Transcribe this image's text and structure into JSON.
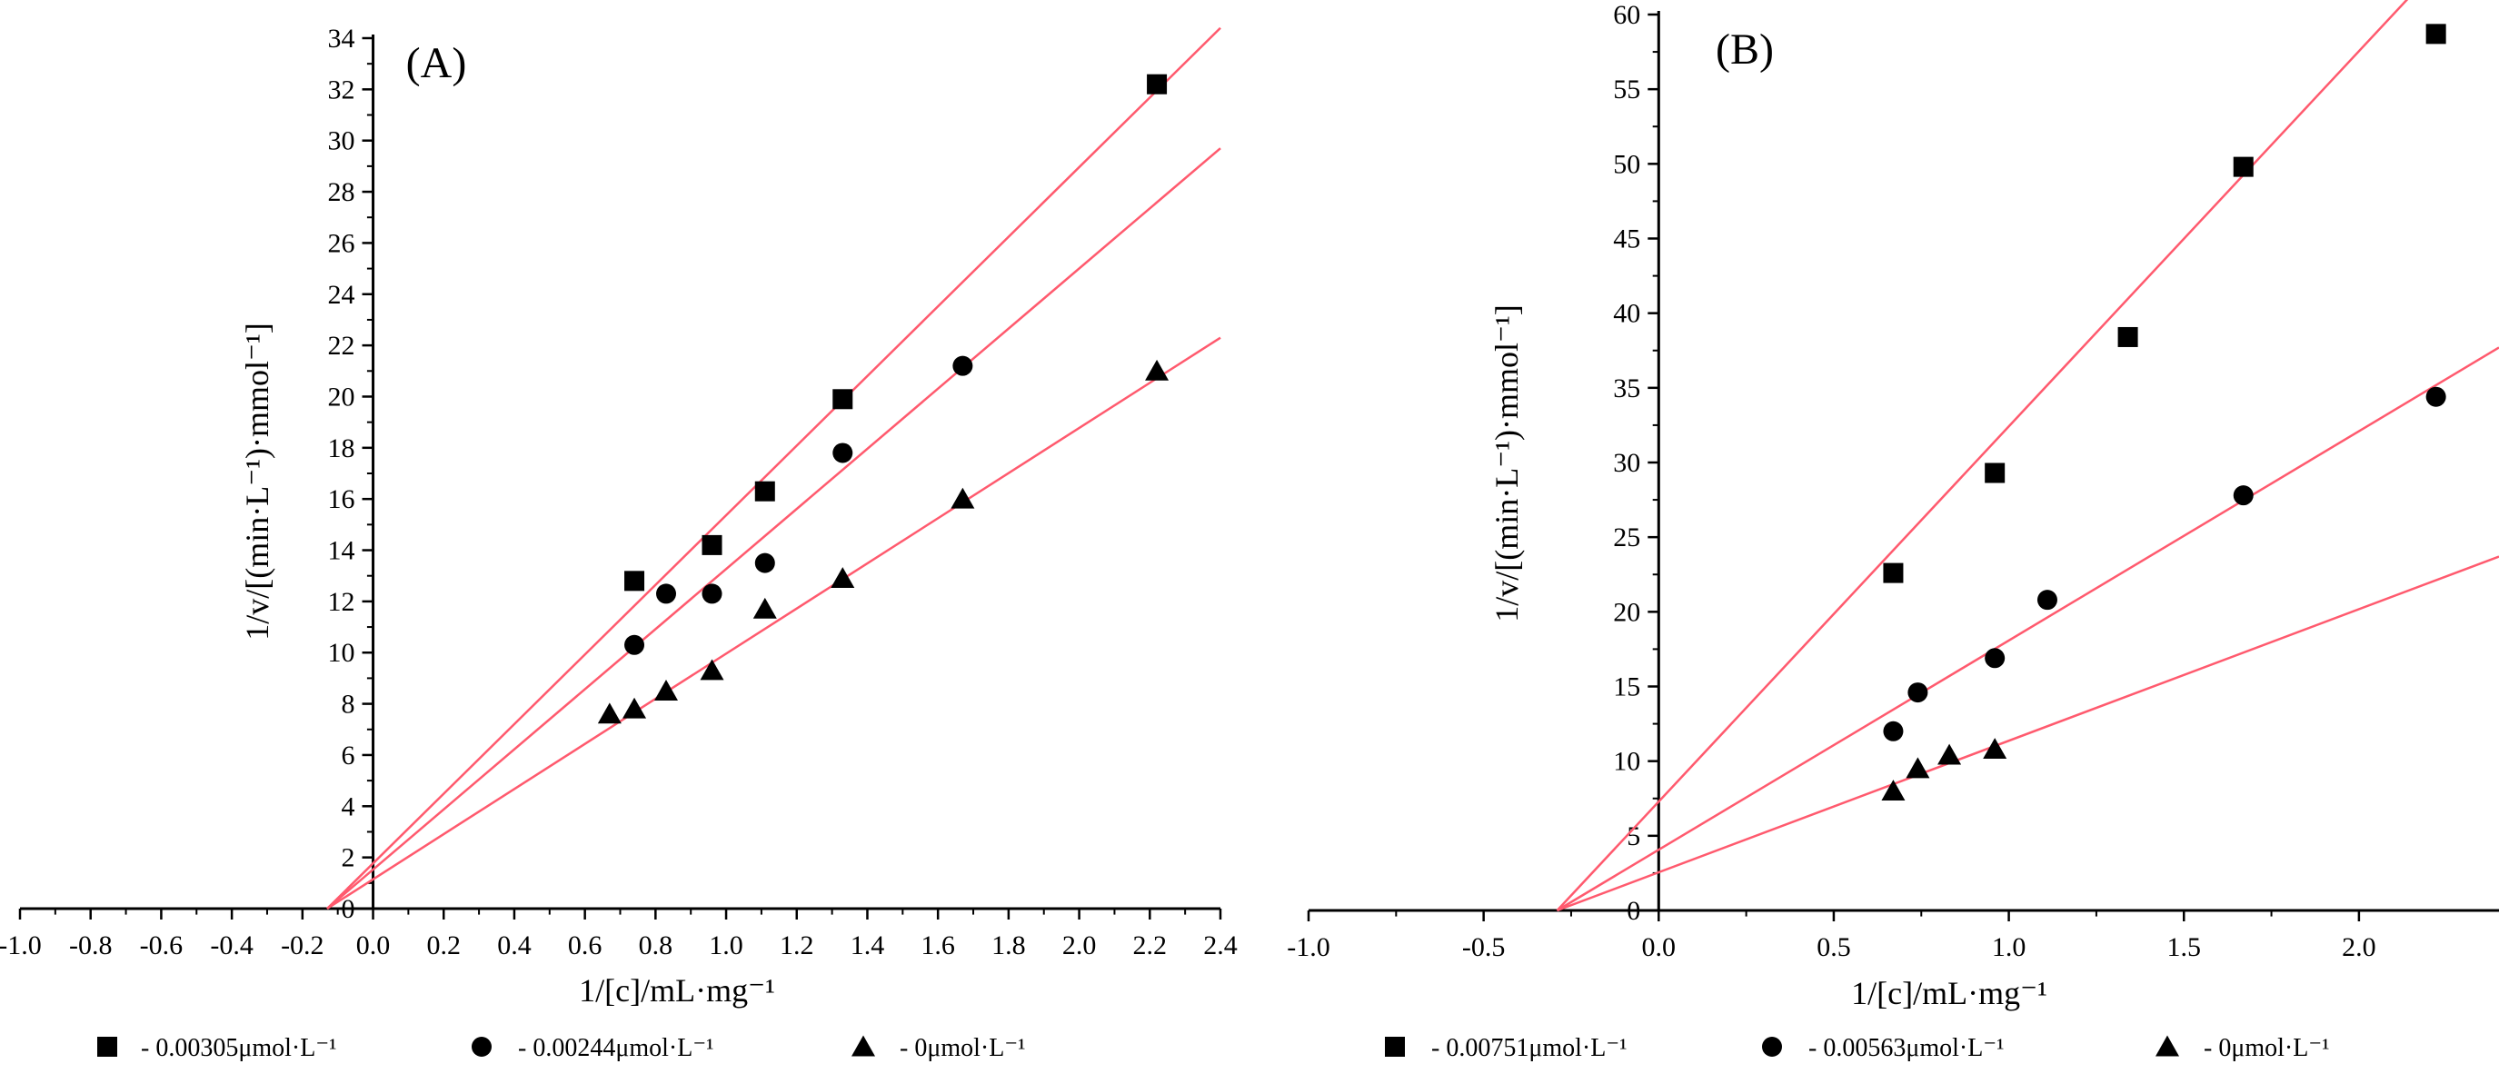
{
  "chart_data": [
    {
      "type": "scatter",
      "panel_label": "(A)",
      "xlabel": "1/[c]/mL·mg⁻¹",
      "ylabel": "1/v/[(min·L⁻¹)·mmol⁻¹]",
      "xlim": [
        -1.0,
        2.4
      ],
      "ylim": [
        0,
        34
      ],
      "x_ticks": [
        -1.0,
        -0.8,
        -0.6,
        -0.4,
        -0.2,
        0.0,
        0.2,
        0.4,
        0.6,
        0.8,
        1.0,
        1.2,
        1.4,
        1.6,
        1.8,
        2.0,
        2.2,
        2.4
      ],
      "x_tick_labels": [
        "-1.0",
        "-0.8",
        "-0.6",
        "-0.4",
        "-0.2",
        "0.0",
        "0.2",
        "0.4",
        "0.6",
        "0.8",
        "1.0",
        "1.2",
        "1.4",
        "1.6",
        "1.8",
        "2.0",
        "2.2",
        "2.4"
      ],
      "y_ticks": [
        0,
        2,
        4,
        6,
        8,
        10,
        12,
        14,
        16,
        18,
        20,
        22,
        24,
        26,
        28,
        30,
        32,
        34
      ],
      "y_tick_labels": [
        "0",
        "2",
        "4",
        "6",
        "8",
        "10",
        "12",
        "14",
        "16",
        "18",
        "20",
        "22",
        "24",
        "26",
        "28",
        "30",
        "32",
        "34"
      ],
      "fit_line_color": "#ff5a6e",
      "series": [
        {
          "name": "- 0.00305μmol·L⁻¹",
          "marker": "square",
          "points": [
            [
              0.74,
              12.8
            ],
            [
              0.96,
              14.2
            ],
            [
              1.11,
              16.3
            ],
            [
              1.33,
              19.9
            ],
            [
              2.22,
              32.2
            ]
          ],
          "fit": [
            [
              -0.13,
              0.0
            ],
            [
              2.4,
              34.4
            ]
          ]
        },
        {
          "name": "- 0.00244μmol·L⁻¹",
          "marker": "circle",
          "points": [
            [
              0.74,
              10.3
            ],
            [
              0.83,
              12.3
            ],
            [
              0.96,
              12.3
            ],
            [
              1.11,
              13.5
            ],
            [
              1.33,
              17.8
            ],
            [
              1.67,
              21.2
            ]
          ],
          "fit": [
            [
              -0.13,
              0.0
            ],
            [
              2.4,
              29.7
            ]
          ]
        },
        {
          "name": "- 0μmol·L⁻¹",
          "marker": "triangle",
          "points": [
            [
              0.67,
              7.6
            ],
            [
              0.74,
              7.8
            ],
            [
              0.83,
              8.5
            ],
            [
              0.96,
              9.3
            ],
            [
              1.11,
              11.7
            ],
            [
              1.33,
              12.9
            ],
            [
              1.67,
              16.0
            ],
            [
              2.22,
              21.0
            ]
          ],
          "fit": [
            [
              -0.13,
              0.0
            ],
            [
              2.4,
              22.3
            ]
          ]
        }
      ]
    },
    {
      "type": "scatter",
      "panel_label": "(B)",
      "xlabel": "1/[c]/mL·mg⁻¹",
      "ylabel": "1/v/[(min·L⁻¹)·mmol⁻¹]",
      "xlim": [
        -1.0,
        2.4
      ],
      "ylim": [
        0,
        60
      ],
      "x_ticks": [
        -1.0,
        -0.5,
        0.0,
        0.5,
        1.0,
        1.5,
        2.0
      ],
      "x_tick_labels": [
        "-1.0",
        "-0.5",
        "0.0",
        "0.5",
        "1.0",
        "1.5",
        "2.0"
      ],
      "y_ticks": [
        0,
        5,
        10,
        15,
        20,
        25,
        30,
        35,
        40,
        45,
        50,
        55,
        60
      ],
      "y_tick_labels": [
        "0",
        "5",
        "10",
        "15",
        "20",
        "25",
        "30",
        "35",
        "40",
        "45",
        "50",
        "55",
        "60"
      ],
      "fit_line_color": "#ff5a6e",
      "series": [
        {
          "name": "- 0.00751μmol·L⁻¹",
          "marker": "square",
          "points": [
            [
              0.67,
              22.6
            ],
            [
              0.96,
              29.3
            ],
            [
              1.34,
              38.4
            ],
            [
              1.67,
              49.8
            ],
            [
              2.22,
              58.7
            ]
          ],
          "fit": [
            [
              -0.29,
              0.0
            ],
            [
              2.4,
              67.6
            ]
          ]
        },
        {
          "name": "- 0.00563μmol·L⁻¹",
          "marker": "circle",
          "points": [
            [
              0.67,
              12.0
            ],
            [
              0.74,
              14.6
            ],
            [
              0.96,
              16.9
            ],
            [
              1.11,
              20.8
            ],
            [
              1.67,
              27.8
            ],
            [
              2.22,
              34.4
            ]
          ],
          "fit": [
            [
              -0.29,
              0.0
            ],
            [
              2.4,
              37.7
            ]
          ]
        },
        {
          "name": "- 0μmol·L⁻¹",
          "marker": "triangle",
          "points": [
            [
              0.67,
              8.0
            ],
            [
              0.74,
              9.5
            ],
            [
              0.83,
              10.4
            ],
            [
              0.96,
              10.8
            ]
          ],
          "fit": [
            [
              -0.29,
              0.0
            ],
            [
              2.4,
              23.7
            ]
          ]
        }
      ]
    }
  ]
}
